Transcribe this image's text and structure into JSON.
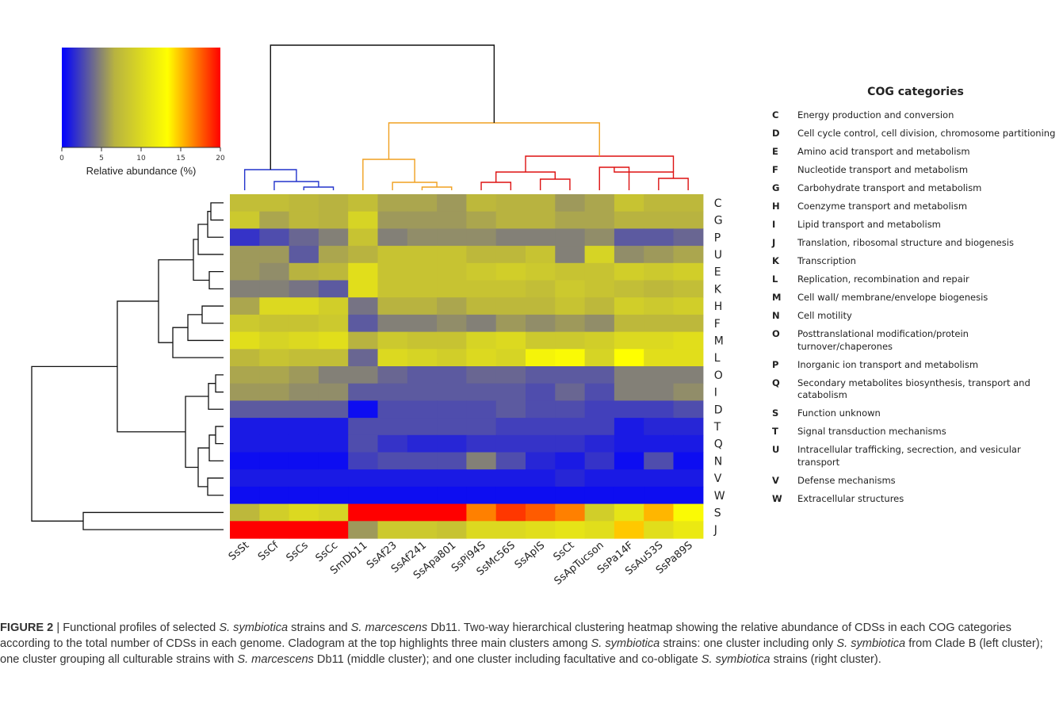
{
  "chart_data": {
    "type": "heatmap",
    "colorbar": {
      "label": "Relative abundance (%)",
      "ticks": [
        "0",
        "5",
        "10",
        "15",
        "20"
      ],
      "range": [
        0,
        21
      ],
      "colors": [
        "#0000ff",
        "#b8b340",
        "#ffff00",
        "#ff0000"
      ]
    },
    "rows": [
      "C",
      "G",
      "P",
      "U",
      "E",
      "K",
      "H",
      "F",
      "M",
      "L",
      "O",
      "I",
      "D",
      "T",
      "Q",
      "N",
      "V",
      "W",
      "S",
      "J"
    ],
    "columns": [
      "SsSt",
      "SsCf",
      "SsCs",
      "SsCc",
      "SmDb11",
      "SsAf23",
      "SsAf241",
      "SsApa801",
      "SsPi94S",
      "SsMc56S",
      "SsApIS",
      "SsCt",
      "SsApTucson",
      "SsPa14F",
      "SsAu53S",
      "SsPa89S"
    ],
    "values": [
      [
        8.0,
        8.0,
        7.5,
        7.0,
        8.0,
        6.5,
        6.5,
        6.0,
        7.5,
        7.0,
        7.0,
        6.0,
        6.5,
        8.5,
        7.5,
        7.5
      ],
      [
        9.0,
        6.5,
        7.5,
        7.0,
        10.0,
        6.0,
        6.0,
        6.0,
        6.5,
        7.0,
        7.0,
        6.5,
        6.5,
        7.0,
        7.0,
        7.0
      ],
      [
        2.0,
        3.0,
        4.0,
        5.0,
        8.5,
        5.0,
        5.5,
        5.5,
        5.5,
        5.0,
        5.0,
        5.0,
        5.5,
        3.5,
        3.5,
        4.0
      ],
      [
        6.0,
        6.0,
        3.5,
        6.5,
        7.0,
        8.5,
        8.5,
        8.5,
        7.5,
        7.5,
        8.5,
        5.0,
        10.0,
        5.5,
        6.0,
        6.5
      ],
      [
        6.0,
        5.5,
        7.0,
        7.5,
        11.0,
        8.5,
        8.5,
        8.5,
        9.0,
        9.5,
        9.0,
        8.5,
        8.5,
        9.5,
        9.0,
        9.5
      ],
      [
        5.0,
        5.0,
        4.5,
        3.5,
        11.0,
        8.5,
        8.5,
        8.5,
        8.5,
        8.5,
        8.0,
        9.0,
        8.5,
        8.0,
        7.5,
        8.0
      ],
      [
        6.5,
        10.5,
        10.5,
        9.5,
        4.5,
        7.0,
        7.0,
        6.5,
        7.5,
        7.5,
        7.5,
        8.5,
        7.5,
        9.5,
        9.0,
        9.5
      ],
      [
        9.0,
        8.5,
        8.5,
        9.0,
        3.5,
        5.0,
        5.0,
        5.5,
        5.0,
        6.0,
        5.5,
        6.0,
        5.5,
        7.5,
        7.5,
        7.5
      ],
      [
        11.0,
        10.0,
        10.5,
        11.0,
        7.0,
        9.0,
        8.5,
        8.5,
        10.0,
        10.5,
        9.0,
        9.0,
        9.5,
        10.5,
        10.5,
        11.0
      ],
      [
        7.5,
        8.5,
        8.0,
        8.0,
        4.0,
        10.5,
        10.0,
        9.5,
        10.5,
        10.0,
        13.0,
        13.5,
        10.0,
        14.0,
        11.0,
        11.0
      ],
      [
        6.5,
        6.5,
        6.0,
        5.0,
        5.0,
        4.0,
        3.5,
        3.5,
        4.0,
        4.0,
        3.5,
        3.5,
        3.5,
        5.0,
        5.0,
        5.0
      ],
      [
        6.0,
        6.0,
        5.5,
        5.5,
        3.5,
        3.5,
        3.5,
        3.5,
        3.5,
        3.5,
        3.0,
        4.0,
        3.0,
        5.0,
        5.0,
        5.5
      ],
      [
        3.5,
        3.5,
        3.5,
        3.5,
        0.5,
        3.0,
        3.0,
        3.0,
        3.0,
        3.5,
        3.0,
        3.0,
        2.5,
        2.5,
        2.5,
        3.0
      ],
      [
        1.0,
        1.0,
        1.0,
        1.0,
        3.0,
        3.0,
        3.0,
        3.0,
        3.0,
        2.5,
        2.5,
        2.5,
        2.5,
        1.0,
        1.5,
        1.5
      ],
      [
        1.0,
        1.0,
        1.0,
        1.0,
        3.0,
        2.0,
        1.5,
        1.5,
        2.0,
        2.0,
        2.0,
        2.0,
        1.5,
        1.0,
        1.0,
        1.0
      ],
      [
        0.5,
        0.5,
        0.5,
        0.5,
        2.5,
        3.0,
        3.0,
        3.0,
        5.0,
        3.0,
        1.5,
        1.0,
        2.0,
        0.5,
        3.0,
        0.5
      ],
      [
        1.0,
        1.0,
        1.0,
        1.0,
        1.0,
        1.0,
        1.0,
        1.0,
        1.0,
        1.0,
        1.0,
        1.5,
        1.0,
        1.0,
        1.0,
        1.0
      ],
      [
        0.5,
        0.5,
        0.5,
        0.5,
        0.5,
        0.5,
        0.5,
        0.5,
        0.5,
        0.5,
        0.5,
        0.5,
        0.5,
        0.5,
        0.5,
        0.5
      ],
      [
        7.5,
        9.5,
        10.5,
        10.0,
        21.0,
        21.0,
        21.0,
        21.0,
        17.5,
        19.5,
        18.5,
        17.5,
        9.5,
        11.5,
        16.0,
        13.5
      ],
      [
        21.0,
        21.0,
        21.0,
        21.0,
        6.0,
        9.0,
        9.0,
        8.5,
        10.5,
        10.5,
        11.0,
        11.5,
        11.0,
        15.5,
        11.0,
        12.0
      ]
    ],
    "xlabel": "",
    "ylabel": ""
  },
  "dendrogram_colors": {
    "clade_b": "#2233cc",
    "culturable": "#f0a020",
    "facultative": "#dd1111",
    "root": "#111111",
    "rows": "#111111"
  },
  "legend": {
    "title": "COG categories",
    "items": [
      {
        "code": "C",
        "label": "Energy production and conversion"
      },
      {
        "code": "D",
        "label": "Cell cycle control, cell division, chromosome partitioning"
      },
      {
        "code": "E",
        "label": "Amino acid transport and metabolism"
      },
      {
        "code": "F",
        "label": "Nucleotide transport and metabolism"
      },
      {
        "code": "G",
        "label": "Carbohydrate transport and metabolism"
      },
      {
        "code": "H",
        "label": "Coenzyme transport and metabolism"
      },
      {
        "code": "I",
        "label": "Lipid transport and metabolism"
      },
      {
        "code": "J",
        "label": "Translation, ribosomal structure and biogenesis"
      },
      {
        "code": "K",
        "label": "Transcription"
      },
      {
        "code": "L",
        "label": "Replication, recombination and repair"
      },
      {
        "code": "M",
        "label": "Cell wall/ membrane/envelope biogenesis"
      },
      {
        "code": "N",
        "label": "Cell motility"
      },
      {
        "code": "O",
        "label": "Posttranslational modification/protein turnover/chaperones"
      },
      {
        "code": "P",
        "label": "Inorganic ion transport and metabolism"
      },
      {
        "code": "Q",
        "label": "Secondary metabolites biosynthesis, transport and catabolism"
      },
      {
        "code": "S",
        "label": "Function unknown"
      },
      {
        "code": "T",
        "label": "Signal transduction mechanisms"
      },
      {
        "code": "U",
        "label": "Intracellular trafficking, secrection, and vesicular transport"
      },
      {
        "code": "V",
        "label": "Defense mechanisms"
      },
      {
        "code": "W",
        "label": "Extracellular structures"
      }
    ]
  },
  "caption": {
    "label": "FIGURE 2",
    "separator": " | ",
    "segments": [
      {
        "text": "Functional profiles of selected ",
        "italic": false
      },
      {
        "text": "S. symbiotica",
        "italic": true
      },
      {
        "text": " strains and ",
        "italic": false
      },
      {
        "text": "S. marcescens",
        "italic": true
      },
      {
        "text": " Db11. Two-way hierarchical clustering heatmap showing the relative abundance of CDSs in each COG categories according to the total number of CDSs in each genome. Cladogram at the top highlights three main clusters among ",
        "italic": false
      },
      {
        "text": "S. symbiotica",
        "italic": true
      },
      {
        "text": " strains: one cluster including only ",
        "italic": false
      },
      {
        "text": "S. symbiotica",
        "italic": true
      },
      {
        "text": " from Clade B (left cluster); one cluster grouping all culturable strains with ",
        "italic": false
      },
      {
        "text": "S. marcescens",
        "italic": true
      },
      {
        "text": " Db11 (middle cluster); and one cluster including facultative and co-obligate ",
        "italic": false
      },
      {
        "text": "S. symbiotica",
        "italic": true
      },
      {
        "text": " strains (right cluster).",
        "italic": false
      }
    ]
  }
}
